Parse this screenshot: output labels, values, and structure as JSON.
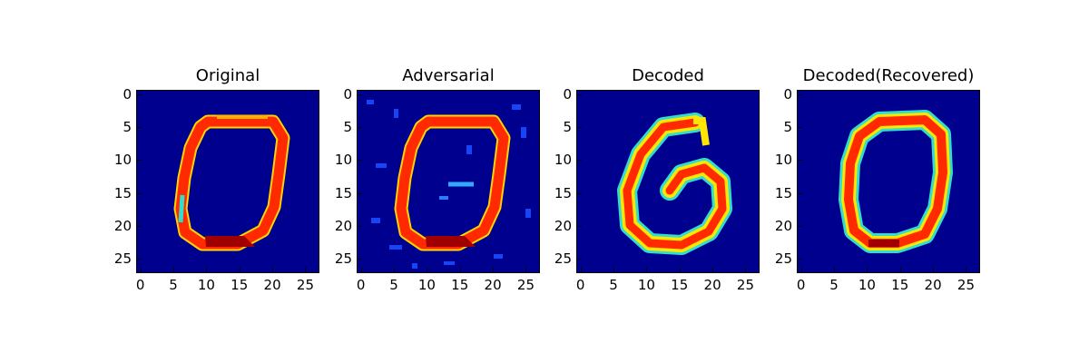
{
  "chart_data": [
    {
      "type": "heatmap",
      "title": "Original",
      "xlim": [
        0,
        27
      ],
      "ylim": [
        27,
        0
      ],
      "xticks": [
        0,
        5,
        10,
        15,
        20,
        25
      ],
      "yticks": [
        0,
        5,
        10,
        15,
        20,
        25
      ],
      "colormap": "jet",
      "image": "digit zero with thick red outline"
    },
    {
      "type": "heatmap",
      "title": "Adversarial",
      "xlim": [
        0,
        27
      ],
      "ylim": [
        27,
        0
      ],
      "xticks": [
        0,
        5,
        10,
        15,
        20,
        25
      ],
      "yticks": [
        0,
        5,
        10,
        15,
        20,
        25
      ],
      "colormap": "jet",
      "image": "digit zero with noise"
    },
    {
      "type": "heatmap",
      "title": "Decoded",
      "xlim": [
        0,
        27
      ],
      "ylim": [
        27,
        0
      ],
      "xticks": [
        0,
        5,
        10,
        15,
        20,
        25
      ],
      "yticks": [
        0,
        5,
        10,
        15,
        20,
        25
      ],
      "colormap": "jet",
      "image": "smooth digit six"
    },
    {
      "type": "heatmap",
      "title": "Decoded(Recovered)",
      "xlim": [
        0,
        27
      ],
      "ylim": [
        27,
        0
      ],
      "xticks": [
        0,
        5,
        10,
        15,
        20,
        25
      ],
      "yticks": [
        0,
        5,
        10,
        15,
        20,
        25
      ],
      "colormap": "jet",
      "image": "smooth digit zero"
    }
  ],
  "colors": {
    "background": "#00008f",
    "hot": "#b40000",
    "red": "#ff2a00",
    "yellow": "#ffe600",
    "cyan": "#33ddcc",
    "light_blue": "#2c7bff"
  }
}
